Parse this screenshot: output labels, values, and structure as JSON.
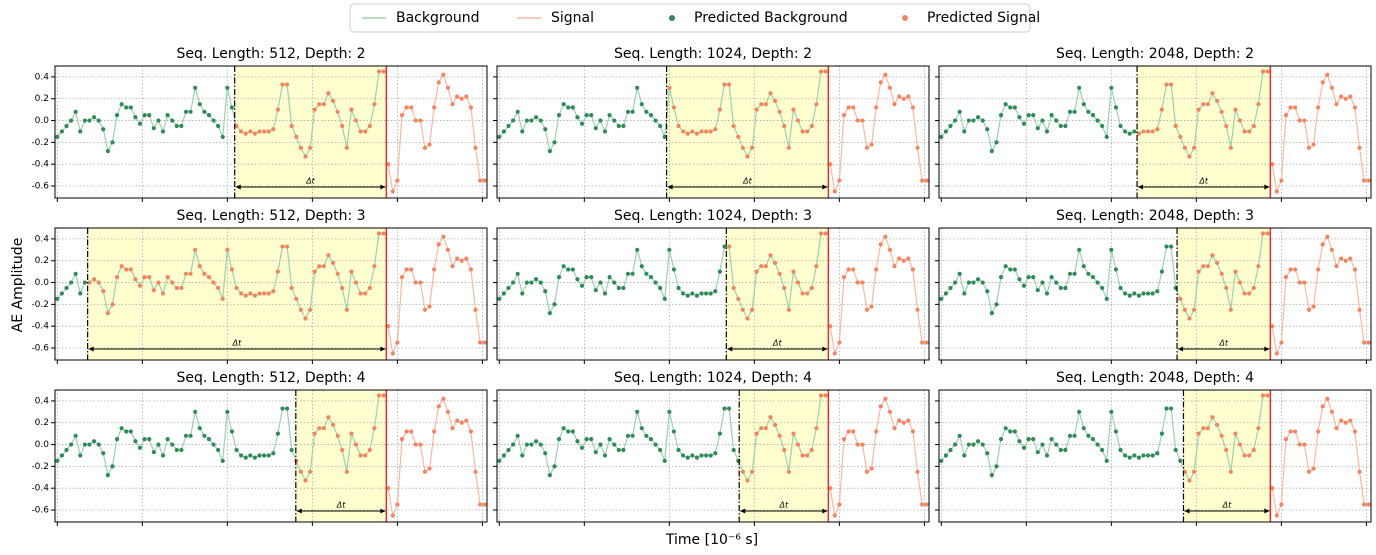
{
  "chart_data": {
    "type": "line",
    "y_label": "AE Amplitude",
    "x_label": "Time [10⁻⁶ s]",
    "annotation": "Δt",
    "xlim": [
      -0.5,
      93.5
    ],
    "xticks": [
      0,
      18.5,
      37,
      55.5,
      74,
      92.5
    ],
    "ylim": [
      -0.71,
      0.5
    ],
    "yticks": [
      0.4,
      0.2,
      {
        "value": 0,
        "label": "0.0"
      },
      -0.2,
      -0.4,
      -0.6
    ],
    "grid": true,
    "series": [
      {
        "name": "Background",
        "color": "#9dd0ae",
        "values": [
          -0.15,
          -0.1,
          -0.05,
          0.0,
          0.08,
          -0.1,
          0.0,
          0.0,
          0.03,
          0.0,
          -0.08,
          -0.28,
          -0.2,
          0.05,
          0.15,
          0.12,
          0.12,
          0.03,
          -0.03,
          0.05,
          0.05,
          -0.07,
          0.0,
          -0.1,
          0.05,
          0.0,
          -0.05,
          -0.05,
          0.08,
          0.08,
          0.3,
          0.15,
          0.08,
          0.05,
          0.0,
          -0.05,
          -0.15,
          0.3,
          0.12,
          -0.05,
          -0.1,
          -0.12,
          -0.1,
          -0.12,
          -0.1,
          -0.1,
          -0.1,
          -0.08,
          0.1,
          0.33,
          0.33,
          -0.05,
          -0.15,
          -0.25,
          -0.33,
          -0.25,
          0.1,
          0.15,
          0.15,
          0.25,
          0.18,
          0.08,
          -0.05,
          -0.25,
          0.1,
          0.0,
          -0.1,
          -0.1,
          -0.05,
          0.15,
          0.45,
          0.45,
          null,
          null,
          null,
          null,
          null,
          null,
          null,
          null,
          null,
          null,
          null,
          null,
          null,
          null,
          null,
          null,
          null,
          null,
          null,
          null,
          null,
          null
        ]
      },
      {
        "name": "Signal",
        "color": "#f7b9a2",
        "values": [
          null,
          null,
          null,
          null,
          null,
          null,
          null,
          null,
          null,
          null,
          null,
          null,
          null,
          null,
          null,
          null,
          null,
          null,
          null,
          null,
          null,
          null,
          null,
          null,
          null,
          null,
          null,
          null,
          null,
          null,
          null,
          null,
          null,
          null,
          null,
          null,
          null,
          null,
          null,
          null,
          null,
          null,
          null,
          null,
          null,
          null,
          null,
          null,
          null,
          null,
          null,
          null,
          null,
          null,
          null,
          null,
          null,
          null,
          null,
          null,
          null,
          null,
          null,
          null,
          null,
          null,
          null,
          null,
          null,
          null,
          null,
          null,
          -0.4,
          -0.65,
          -0.55,
          0.05,
          0.12,
          0.12,
          0.0,
          0.0,
          -0.25,
          -0.22,
          0.12,
          0.35,
          0.42,
          0.3,
          0.15,
          0.22,
          0.2,
          0.22,
          0.12,
          -0.25,
          -0.55,
          -0.55
        ]
      }
    ],
    "predicted": [
      {
        "name": "Predicted Background",
        "color": "#2e8b57"
      },
      {
        "name": "Predicted Signal",
        "color": "#f4845f"
      }
    ],
    "onset_color": "#e0302a",
    "shade_color": "#ffffc4",
    "panels": [
      {
        "title": "Seq. Length: 512, Depth: 2",
        "predicted_onset": 38.6,
        "true_onset": 71.6
      },
      {
        "title": "Seq. Length: 1024, Depth: 2",
        "predicted_onset": 36.4,
        "true_onset": 71.6
      },
      {
        "title": "Seq. Length: 2048, Depth: 2",
        "predicted_onset": 42.6,
        "true_onset": 71.6
      },
      {
        "title": "Seq. Length: 512, Depth: 3",
        "predicted_onset": 6.6,
        "true_onset": 71.6
      },
      {
        "title": "Seq. Length: 1024, Depth: 3",
        "predicted_onset": 49.4,
        "true_onset": 71.6
      },
      {
        "title": "Seq. Length: 2048, Depth: 3",
        "predicted_onset": 51.3,
        "true_onset": 71.6
      },
      {
        "title": "Seq. Length: 512, Depth: 4",
        "predicted_onset": 51.9,
        "true_onset": 71.6
      },
      {
        "title": "Seq. Length: 1024, Depth: 4",
        "predicted_onset": 52.2,
        "true_onset": 71.6
      },
      {
        "title": "Seq. Length: 2048, Depth: 4",
        "predicted_onset": 52.7,
        "true_onset": 71.6
      }
    ]
  }
}
